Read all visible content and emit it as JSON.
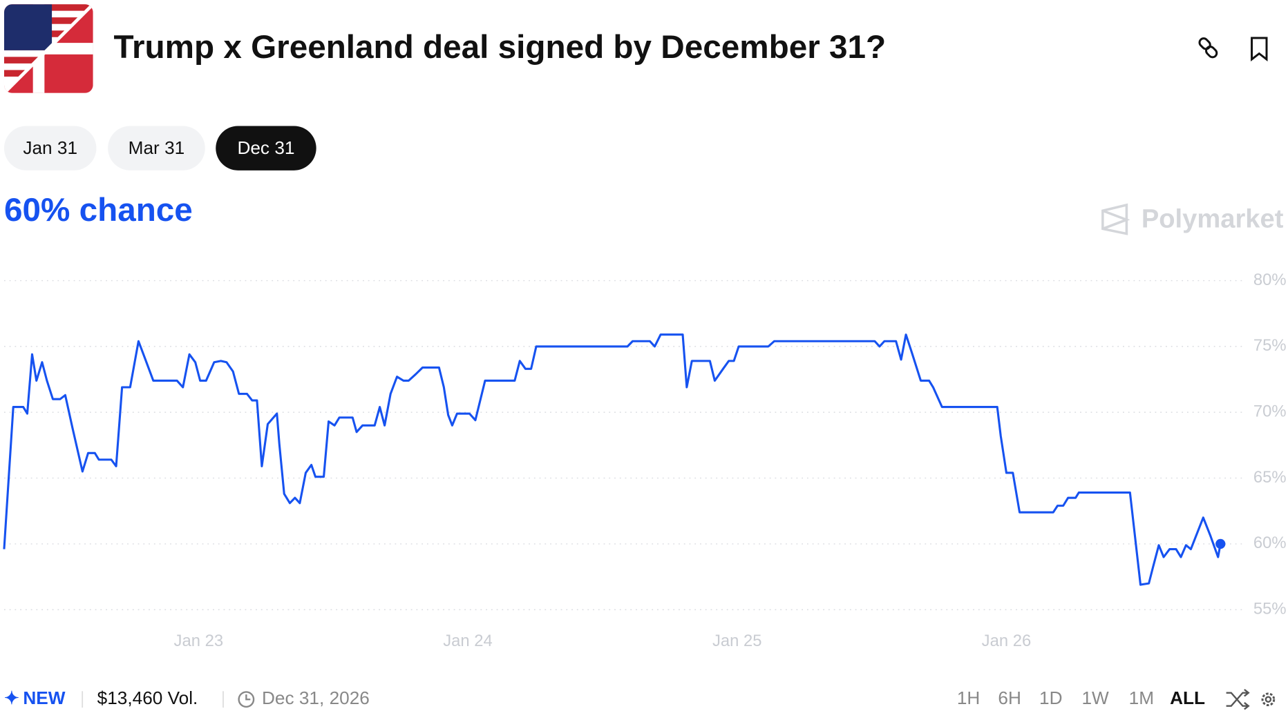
{
  "header": {
    "title": "Trump x Greenland deal signed by December 31?"
  },
  "tabs": [
    "Jan 31",
    "Mar 31",
    "Dec 31"
  ],
  "headline": "60% chance",
  "brand": "Polymarket",
  "footer": {
    "badge": "NEW",
    "volume": "$13,460 Vol.",
    "end_date": "Dec 31, 2026",
    "ranges": [
      "1H",
      "6H",
      "1D",
      "1W",
      "1M",
      "ALL"
    ]
  },
  "chart_data": {
    "type": "line",
    "color": "#1652f0",
    "grid": true,
    "x": [
      22.278,
      22.312,
      22.349,
      22.364,
      22.382,
      22.398,
      22.419,
      22.437,
      22.459,
      22.486,
      22.505,
      22.532,
      22.569,
      22.59,
      22.615,
      22.63,
      22.676,
      22.694,
      22.716,
      22.746,
      22.777,
      22.801,
      22.832,
      22.92,
      22.942,
      22.966,
      22.988,
      23.006,
      23.028,
      23.058,
      23.083,
      23.104,
      23.128,
      23.15,
      23.18,
      23.199,
      23.217,
      23.235,
      23.257,
      23.291,
      23.3,
      23.318,
      23.339,
      23.358,
      23.376,
      23.398,
      23.419,
      23.434,
      23.465,
      23.483,
      23.505,
      23.523,
      23.572,
      23.587,
      23.609,
      23.654,
      23.673,
      23.691,
      23.713,
      23.737,
      23.761,
      23.78,
      23.807,
      23.832,
      23.893,
      23.911,
      23.927,
      23.942,
      23.96,
      24.006,
      24.028,
      24.064,
      24.174,
      24.193,
      24.214,
      24.235,
      24.254,
      24.593,
      24.612,
      24.676,
      24.694,
      24.716,
      24.798,
      24.813,
      24.832,
      24.899,
      24.917,
      24.948,
      24.969,
      24.988,
      25.006,
      25.116,
      25.138,
      25.511,
      25.529,
      25.547,
      25.59,
      25.609,
      25.627,
      25.651,
      25.682,
      25.713,
      25.728,
      25.761,
      25.966,
      25.979,
      26.0,
      26.024,
      26.049,
      26.174,
      26.19,
      26.211,
      26.229,
      26.257,
      26.269,
      26.459,
      26.498,
      26.529,
      26.544,
      26.566,
      26.584,
      26.606,
      26.63,
      26.648,
      26.667,
      26.685,
      26.731,
      26.758,
      26.786,
      26.795
    ],
    "values": [
      59.6,
      70.4,
      70.4,
      69.9,
      74.4,
      72.4,
      73.8,
      72.4,
      71.0,
      71.0,
      71.3,
      68.8,
      65.5,
      66.9,
      66.9,
      66.4,
      66.4,
      65.9,
      71.9,
      71.9,
      75.4,
      74.1,
      72.4,
      72.4,
      71.9,
      74.4,
      73.8,
      72.4,
      72.4,
      73.8,
      73.9,
      73.8,
      73.1,
      71.4,
      71.4,
      70.9,
      70.9,
      65.9,
      69.1,
      69.9,
      67.6,
      63.8,
      63.1,
      63.5,
      63.1,
      65.4,
      66.0,
      65.1,
      65.1,
      69.3,
      69.0,
      69.6,
      69.6,
      68.5,
      69.0,
      69.0,
      70.4,
      69.0,
      71.4,
      72.7,
      72.4,
      72.4,
      72.9,
      73.4,
      73.4,
      71.9,
      69.8,
      69.0,
      69.9,
      69.9,
      69.4,
      72.4,
      72.4,
      73.9,
      73.3,
      73.3,
      75.0,
      75.0,
      75.4,
      75.4,
      75.0,
      75.9,
      75.9,
      71.9,
      73.9,
      73.9,
      72.4,
      73.3,
      73.9,
      73.9,
      75.0,
      75.0,
      75.4,
      75.4,
      75.0,
      75.4,
      75.4,
      74.0,
      75.9,
      74.4,
      72.4,
      72.4,
      71.9,
      70.4,
      70.4,
      68.2,
      65.4,
      65.4,
      62.4,
      62.4,
      62.9,
      62.9,
      63.5,
      63.5,
      63.9,
      63.9,
      56.9,
      57.0,
      58.2,
      59.9,
      59.0,
      59.6,
      59.6,
      59.0,
      59.9,
      59.6,
      62.0,
      60.6,
      59.0,
      60.0
    ],
    "xlim": [
      22.278,
      26.795
    ],
    "xticks": [
      {
        "value": 23,
        "label": "Jan 23"
      },
      {
        "value": 24,
        "label": "Jan 24"
      },
      {
        "value": 25,
        "label": "Jan 25"
      },
      {
        "value": 26,
        "label": "Jan 26"
      }
    ],
    "ylim": [
      55,
      80
    ],
    "yticks": [
      {
        "value": 55,
        "label": "55%"
      },
      {
        "value": 60,
        "label": "60%"
      },
      {
        "value": 65,
        "label": "65%"
      },
      {
        "value": 70,
        "label": "70%"
      },
      {
        "value": 75,
        "label": "75%"
      },
      {
        "value": 80,
        "label": "80%"
      }
    ]
  }
}
